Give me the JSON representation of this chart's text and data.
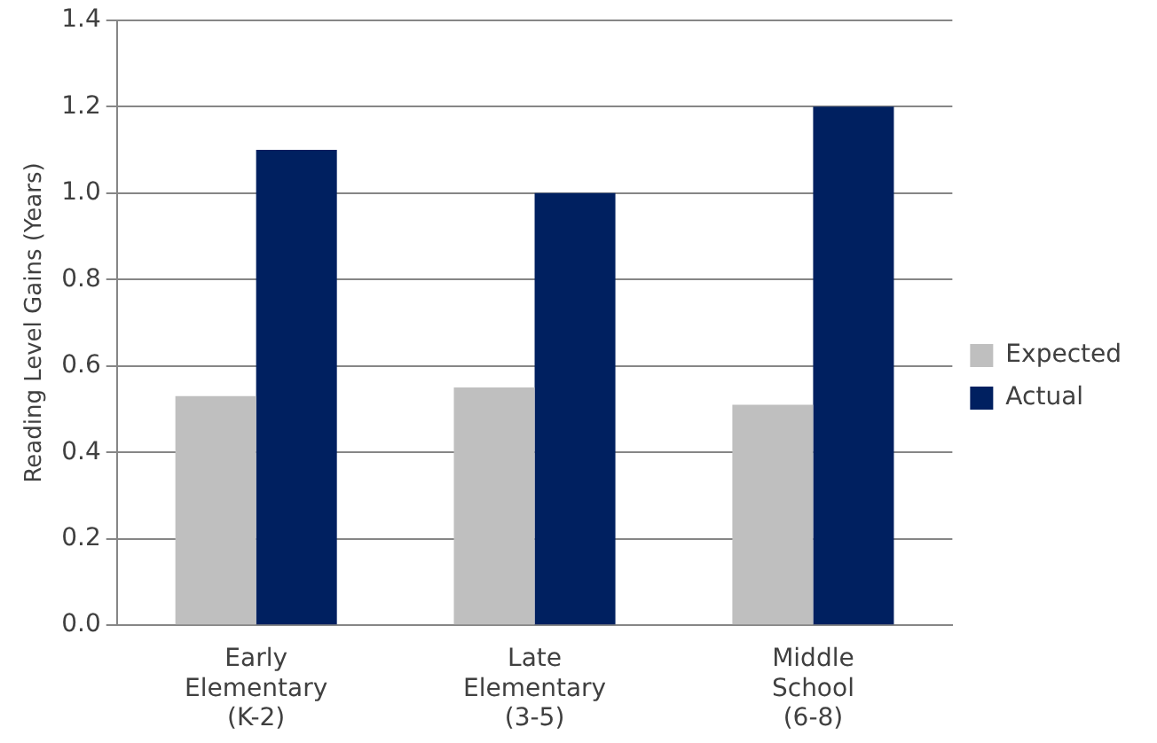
{
  "chart_data": {
    "type": "bar",
    "ylabel": "Reading Level Gains (Years)",
    "categories": [
      "Early Elementary (K-2)",
      "Late Elementary (3-5)",
      "Middle School (6-8)"
    ],
    "series": [
      {
        "name": "Expected",
        "color": "#bfbfbf",
        "values": [
          0.53,
          0.55,
          0.51
        ]
      },
      {
        "name": "Actual",
        "color": "#002060",
        "values": [
          1.1,
          1.0,
          1.2
        ]
      }
    ],
    "ylim": [
      0,
      1.4
    ],
    "yticks": [
      {
        "value": 0,
        "label": "0.0"
      },
      0.2,
      0.4,
      0.6,
      0.8,
      {
        "value": 1,
        "label": "1.0"
      },
      1.2,
      1.4
    ],
    "grid": "y",
    "legend": "right"
  }
}
